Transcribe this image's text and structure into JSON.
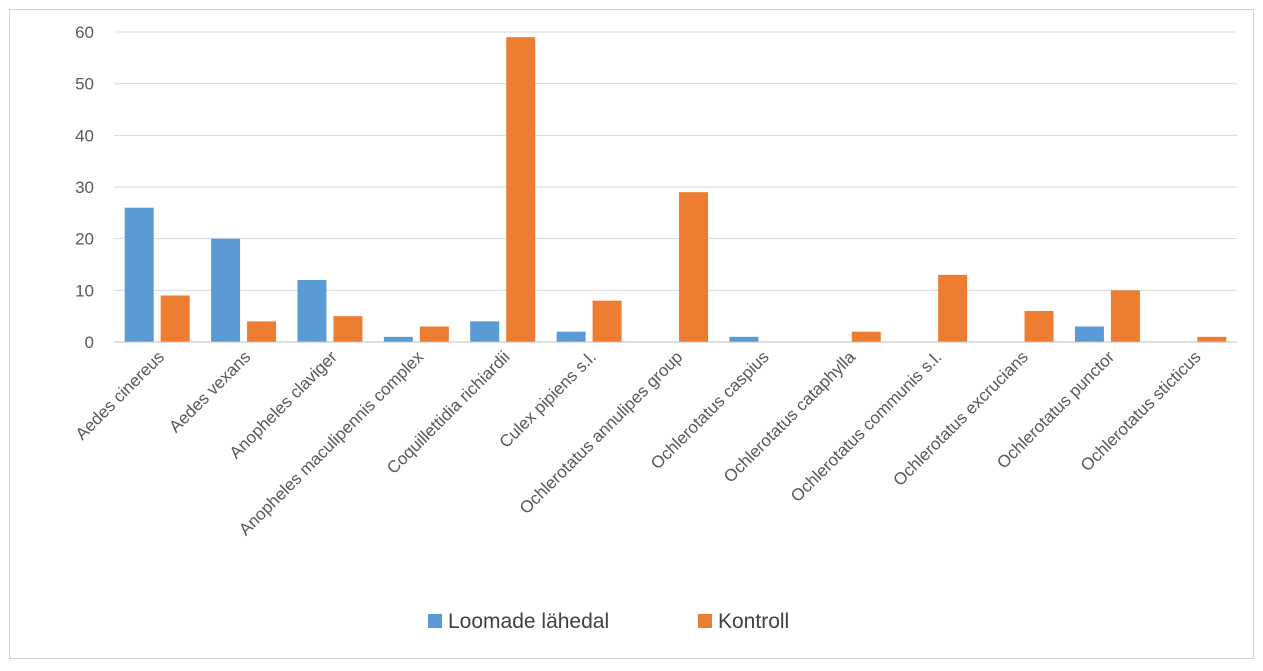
{
  "chart_data": {
    "type": "bar",
    "title": "",
    "xlabel": "",
    "ylabel": "",
    "ylim": [
      0,
      60
    ],
    "yticks": [
      "0",
      "10",
      "20",
      "30",
      "40",
      "50",
      "60"
    ],
    "grid": true,
    "legend_position": "bottom",
    "categories": [
      "Aedes cinereus",
      "Aedes vexans",
      "Anopheles claviger",
      "Anopheles maculipennis complex",
      "Coquillettidia richiardii",
      "Culex pipiens s.l.",
      "Ochlerotatus annulipes group",
      "Ochlerotatus caspius",
      "Ochlerotatus cataphylla",
      "Ochlerotatus communis s.l.",
      "Ochlerotatus excrucians",
      "Ochlerotatus punctor",
      "Ochlerotatus sticticus"
    ],
    "series": [
      {
        "name": "Loomade lähedal",
        "color": "#5b9bd5",
        "values": [
          26,
          20,
          12,
          1,
          4,
          2,
          0,
          1,
          0,
          0,
          0,
          3,
          0
        ]
      },
      {
        "name": "Kontroll",
        "color": "#ed7d31",
        "values": [
          9,
          4,
          5,
          3,
          59,
          8,
          29,
          0,
          2,
          13,
          6,
          10,
          1
        ]
      }
    ]
  }
}
